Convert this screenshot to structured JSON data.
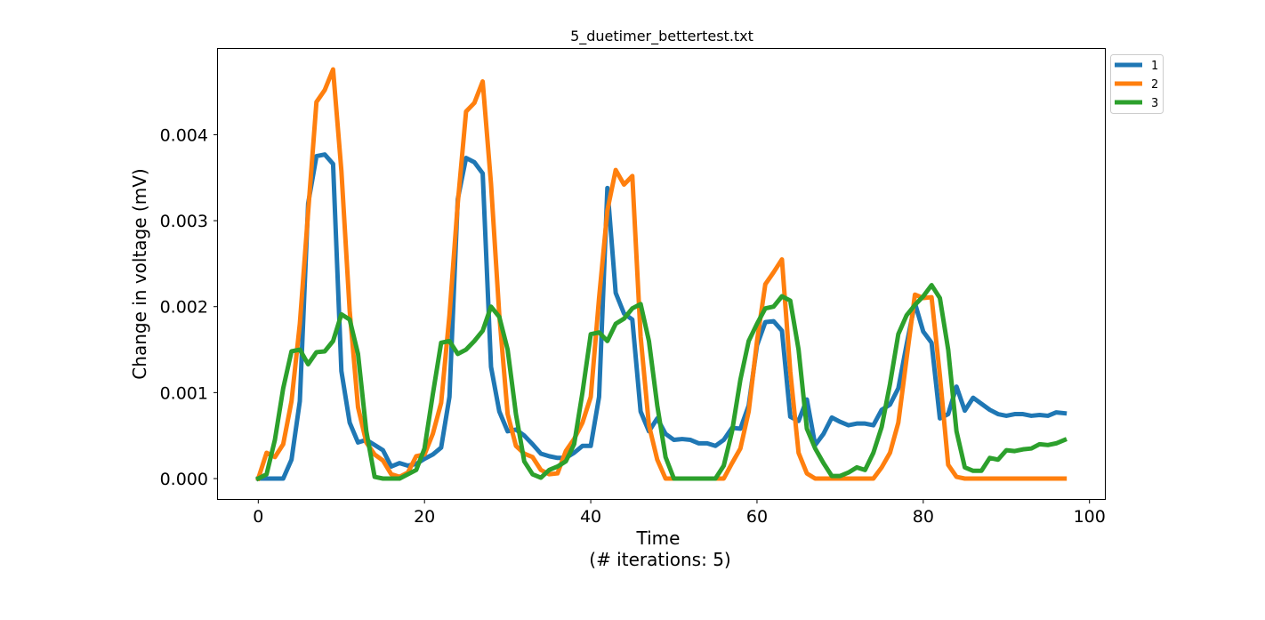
{
  "chart_data": {
    "type": "line",
    "title": "5_duetimer_bettertest.txt",
    "xlabel": "Time",
    "xlabel_sub": "(# iterations: 5)",
    "ylabel": "Change in voltage (mV)",
    "xlim": [
      -4.85,
      101.85
    ],
    "ylim": [
      -0.000238,
      0.004998
    ],
    "xticks": [
      0,
      20,
      40,
      60,
      80,
      100
    ],
    "yticks": [
      0.0,
      0.001,
      0.002,
      0.003,
      0.004
    ],
    "ytick_labels": [
      "0.000",
      "0.001",
      "0.002",
      "0.003",
      "0.004"
    ],
    "legend_position": "top-right outside",
    "grid": false,
    "x": [
      0,
      1,
      2,
      3,
      4,
      5,
      6,
      7,
      8,
      9,
      10,
      11,
      12,
      13,
      14,
      15,
      16,
      17,
      18,
      19,
      20,
      21,
      22,
      23,
      24,
      25,
      26,
      27,
      28,
      29,
      30,
      31,
      32,
      33,
      34,
      35,
      36,
      37,
      38,
      39,
      40,
      41,
      42,
      43,
      44,
      45,
      46,
      47,
      48,
      49,
      50,
      51,
      52,
      53,
      54,
      55,
      56,
      57,
      58,
      59,
      60,
      61,
      62,
      63,
      64,
      65,
      66,
      67,
      68,
      69,
      70,
      71,
      72,
      73,
      74,
      75,
      76,
      77,
      78,
      79,
      80,
      81,
      82,
      83,
      84,
      85,
      86,
      87,
      88,
      89,
      90,
      91,
      92,
      93,
      94,
      95,
      96,
      97
    ],
    "series": [
      {
        "name": "1",
        "color": "#1f77b4",
        "values": [
          0,
          0,
          0,
          0,
          0.00022,
          0.0009,
          0.0032,
          0.00375,
          0.00377,
          0.00366,
          0.00125,
          0.00065,
          0.00042,
          0.00045,
          0.00039,
          0.00033,
          0.00014,
          0.00018,
          0.00015,
          0.00017,
          0.00023,
          0.00028,
          0.00036,
          0.00095,
          0.00325,
          0.00373,
          0.00368,
          0.00355,
          0.0013,
          0.00078,
          0.00055,
          0.00057,
          0.0005,
          0.0004,
          0.00029,
          0.00026,
          0.00024,
          0.00024,
          0.0003,
          0.00038,
          0.00038,
          0.00095,
          0.00338,
          0.00216,
          0.00192,
          0.00185,
          0.00078,
          0.00055,
          0.0007,
          0.00052,
          0.00045,
          0.00046,
          0.00045,
          0.00041,
          0.00041,
          0.00038,
          0.00045,
          0.00059,
          0.00058,
          0.00085,
          0.00155,
          0.00182,
          0.00183,
          0.00172,
          0.00072,
          0.00067,
          0.00092,
          0.00039,
          0.00052,
          0.00071,
          0.00066,
          0.00062,
          0.00064,
          0.00064,
          0.00062,
          0.0008,
          0.00086,
          0.00105,
          0.00156,
          0.00204,
          0.00171,
          0.00158,
          0.0007,
          0.00075,
          0.00107,
          0.00079,
          0.00094,
          0.00087,
          0.0008,
          0.00075,
          0.00073,
          0.00075,
          0.00075,
          0.00073,
          0.00074,
          0.00073,
          0.00077,
          0.00076
        ]
      },
      {
        "name": "2",
        "color": "#ff7f0e",
        "values": [
          0,
          0.0003,
          0.00025,
          0.0004,
          0.0009,
          0.0018,
          0.0031,
          0.00438,
          0.00452,
          0.00476,
          0.00358,
          0.00195,
          0.00083,
          0.00042,
          0.00028,
          0.00021,
          5e-05,
          2e-05,
          7e-05,
          0.00026,
          0.00028,
          0.00052,
          0.00088,
          0.0019,
          0.0032,
          0.00427,
          0.00437,
          0.00462,
          0.00343,
          0.0019,
          0.00075,
          0.00038,
          0.00029,
          0.00025,
          0.0001,
          5e-05,
          6e-05,
          0.00032,
          0.00046,
          0.00065,
          0.00095,
          0.0021,
          0.00312,
          0.00359,
          0.00342,
          0.00352,
          0.00165,
          0.00062,
          0.00022,
          0,
          0,
          0,
          0,
          0,
          0,
          0,
          0,
          0.00018,
          0.00035,
          0.00078,
          0.0016,
          0.00226,
          0.0024,
          0.00255,
          0.00125,
          0.0003,
          6e-05,
          0,
          0,
          0,
          0,
          0,
          0,
          0,
          0,
          0.00013,
          0.0003,
          0.00065,
          0.0014,
          0.00214,
          0.0021,
          0.00211,
          0.0012,
          0.00016,
          2e-05,
          0,
          0,
          0,
          0,
          0,
          0,
          0,
          0,
          0,
          0,
          0,
          0,
          0
        ]
      },
      {
        "name": "3",
        "color": "#2ca02c",
        "values": [
          0,
          5e-05,
          0.00045,
          0.00105,
          0.00148,
          0.0015,
          0.00133,
          0.00147,
          0.00148,
          0.0016,
          0.00191,
          0.00185,
          0.00145,
          0.00055,
          2e-05,
          0,
          0,
          0,
          5e-05,
          0.0001,
          0.00035,
          0.00098,
          0.00158,
          0.0016,
          0.00145,
          0.0015,
          0.0016,
          0.00172,
          0.002,
          0.00188,
          0.0015,
          0.00075,
          0.0002,
          5e-05,
          1e-05,
          0.0001,
          0.00014,
          0.0002,
          0.0004,
          0.001,
          0.00168,
          0.0017,
          0.0016,
          0.0018,
          0.00186,
          0.00198,
          0.00203,
          0.0016,
          0.00085,
          0.00025,
          0,
          0,
          0,
          0,
          0,
          0,
          0.00015,
          0.00055,
          0.00115,
          0.0016,
          0.0018,
          0.00198,
          0.002,
          0.00212,
          0.00207,
          0.0015,
          0.00058,
          0.00035,
          0.00018,
          3e-05,
          3e-05,
          7e-05,
          0.00013,
          0.0001,
          0.0003,
          0.0006,
          0.0011,
          0.00168,
          0.0019,
          0.00202,
          0.00212,
          0.00225,
          0.0021,
          0.0015,
          0.00055,
          0.00013,
          9e-05,
          9e-05,
          0.00024,
          0.00022,
          0.00033,
          0.00032,
          0.00034,
          0.00035,
          0.0004,
          0.00039,
          0.00041,
          0.00045
        ]
      }
    ]
  }
}
